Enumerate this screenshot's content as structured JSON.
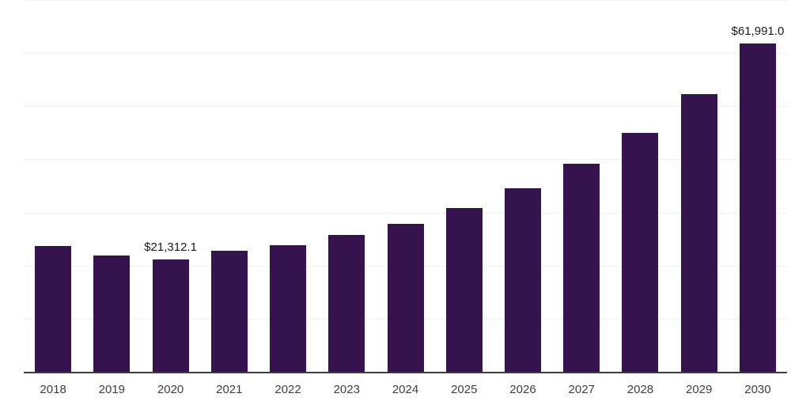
{
  "chart_data": {
    "type": "bar",
    "title": "",
    "xlabel": "",
    "ylabel": "",
    "categories": [
      "2018",
      "2019",
      "2020",
      "2021",
      "2022",
      "2023",
      "2024",
      "2025",
      "2026",
      "2027",
      "2028",
      "2029",
      "2030"
    ],
    "values": [
      23900,
      22000,
      21312.1,
      22900,
      24050,
      25900,
      28000,
      31000,
      34750,
      39350,
      45080,
      52430,
      61991.0
    ],
    "annotations": [
      {
        "category": "2020",
        "text": "$21,312.1"
      },
      {
        "category": "2030",
        "text": "$61,991.0"
      }
    ],
    "ylim": [
      0,
      70000
    ],
    "gridline_step": 10000,
    "grid": "horizontal",
    "legend": "none",
    "y_tick_labels_visible": false,
    "colors": {
      "bar": "#36124E",
      "background": "#ffffff",
      "axis_line": "#3d3d3d",
      "gridline": "#f0f0f0",
      "tick_label": "#3c3c3c",
      "data_label": "#1a1a1a"
    }
  }
}
